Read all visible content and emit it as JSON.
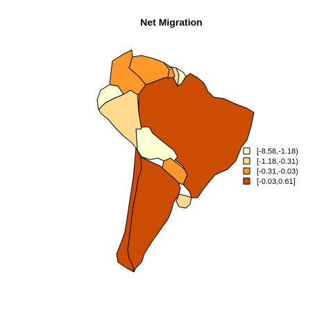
{
  "map": {
    "title": "Net Migration",
    "region": "South America",
    "legend": {
      "placement": "right",
      "classes": [
        {
          "label": "[-8.58,-1.18)",
          "color": "#FFFFD4"
        },
        {
          "label": "[-1.18,-0.31)",
          "color": "#FED98E"
        },
        {
          "label": "[-0.31,-0.03)",
          "color": "#FE9929"
        },
        {
          "label": "[-0.03,0.61]",
          "color": "#CC4C02"
        }
      ]
    },
    "countries": [
      {
        "name": "Brazil",
        "class": 3
      },
      {
        "name": "Argentina",
        "class": 3
      },
      {
        "name": "Chile",
        "class": 3
      },
      {
        "name": "Bolivia",
        "class": 0
      },
      {
        "name": "Peru",
        "class": 1
      },
      {
        "name": "Ecuador",
        "class": 0
      },
      {
        "name": "Colombia",
        "class": 2
      },
      {
        "name": "Venezuela",
        "class": 2
      },
      {
        "name": "Guyana",
        "class": 2
      },
      {
        "name": "Suriname",
        "class": 1
      },
      {
        "name": "French Guiana",
        "class": 0
      },
      {
        "name": "Paraguay",
        "class": 2
      },
      {
        "name": "Uruguay",
        "class": 1
      }
    ]
  }
}
